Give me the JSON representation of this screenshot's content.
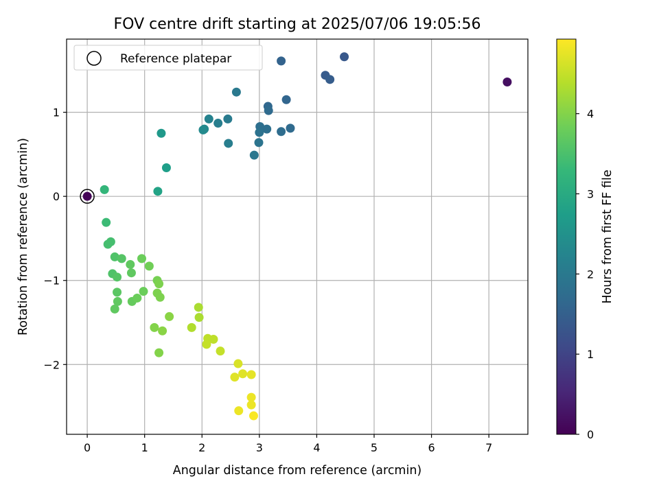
{
  "chart_data": {
    "type": "scatter",
    "title": "FOV centre drift starting at 2025/07/06 19:05:56",
    "xlabel": "Angular distance from reference (arcmin)",
    "ylabel": "Rotation from reference (arcmin)",
    "xlim": [
      -0.36,
      7.68
    ],
    "ylim": [
      -2.83,
      1.87
    ],
    "xticks": [
      0,
      1,
      2,
      3,
      4,
      5,
      6,
      7
    ],
    "xtick_labels": [
      "0",
      "1",
      "2",
      "3",
      "4",
      "5",
      "6",
      "7"
    ],
    "yticks": [
      -2,
      -1,
      0,
      1
    ],
    "ytick_labels": [
      "−2",
      "−1",
      "0",
      "1"
    ],
    "grid": true,
    "legend": {
      "placement": "top-left",
      "entries": [
        {
          "label": "Reference platepar",
          "marker": "open-circle"
        }
      ]
    },
    "reference_point": {
      "x": 0,
      "y": 0
    },
    "colorbar": {
      "label": "Hours from first FF file",
      "range": [
        0,
        4.93
      ],
      "ticks": [
        0,
        1,
        2,
        3,
        4
      ],
      "tick_labels": [
        "0",
        "1",
        "2",
        "3",
        "4"
      ],
      "colormap": "viridis",
      "stops": [
        "#440154",
        "#482878",
        "#3e4a89",
        "#31688e",
        "#26828e",
        "#1f9e89",
        "#35b779",
        "#6ece58",
        "#b5de2b",
        "#fde725"
      ]
    },
    "points": [
      {
        "x": 0.0,
        "y": 0.0,
        "c": 0.05
      },
      {
        "x": 7.32,
        "y": 1.36,
        "c": 0.2
      },
      {
        "x": 4.48,
        "y": 1.66,
        "c": 1.35
      },
      {
        "x": 4.15,
        "y": 1.44,
        "c": 1.4
      },
      {
        "x": 4.23,
        "y": 1.39,
        "c": 1.45
      },
      {
        "x": 3.38,
        "y": 1.61,
        "c": 1.55
      },
      {
        "x": 3.47,
        "y": 1.15,
        "c": 1.6
      },
      {
        "x": 3.15,
        "y": 1.07,
        "c": 1.65
      },
      {
        "x": 3.16,
        "y": 1.02,
        "c": 1.7
      },
      {
        "x": 3.54,
        "y": 0.81,
        "c": 1.7
      },
      {
        "x": 3.38,
        "y": 0.77,
        "c": 1.75
      },
      {
        "x": 3.13,
        "y": 0.8,
        "c": 1.8
      },
      {
        "x": 3.01,
        "y": 0.83,
        "c": 1.8
      },
      {
        "x": 3.0,
        "y": 0.76,
        "c": 1.85
      },
      {
        "x": 2.99,
        "y": 0.64,
        "c": 1.9
      },
      {
        "x": 2.91,
        "y": 0.49,
        "c": 1.95
      },
      {
        "x": 2.6,
        "y": 1.24,
        "c": 2.0
      },
      {
        "x": 2.45,
        "y": 0.92,
        "c": 2.05
      },
      {
        "x": 2.28,
        "y": 0.87,
        "c": 2.1
      },
      {
        "x": 2.46,
        "y": 0.63,
        "c": 2.1
      },
      {
        "x": 2.12,
        "y": 0.92,
        "c": 2.2
      },
      {
        "x": 2.04,
        "y": 0.8,
        "c": 2.3
      },
      {
        "x": 2.02,
        "y": 0.79,
        "c": 2.35
      },
      {
        "x": 1.29,
        "y": 0.75,
        "c": 2.65
      },
      {
        "x": 1.38,
        "y": 0.34,
        "c": 2.75
      },
      {
        "x": 1.23,
        "y": 0.06,
        "c": 2.85
      },
      {
        "x": 0.3,
        "y": 0.08,
        "c": 3.25
      },
      {
        "x": 0.33,
        "y": -0.31,
        "c": 3.35
      },
      {
        "x": 0.41,
        "y": -0.54,
        "c": 3.45
      },
      {
        "x": 0.36,
        "y": -0.57,
        "c": 3.45
      },
      {
        "x": 0.48,
        "y": -0.72,
        "c": 3.55
      },
      {
        "x": 0.6,
        "y": -0.74,
        "c": 3.6
      },
      {
        "x": 0.75,
        "y": -0.81,
        "c": 3.7
      },
      {
        "x": 0.95,
        "y": -0.74,
        "c": 3.8
      },
      {
        "x": 1.08,
        "y": -0.83,
        "c": 3.85
      },
      {
        "x": 0.44,
        "y": -0.92,
        "c": 3.55
      },
      {
        "x": 0.52,
        "y": -0.96,
        "c": 3.6
      },
      {
        "x": 0.77,
        "y": -0.91,
        "c": 3.7
      },
      {
        "x": 1.22,
        "y": -1.0,
        "c": 3.9
      },
      {
        "x": 1.25,
        "y": -1.04,
        "c": 3.95
      },
      {
        "x": 0.52,
        "y": -1.14,
        "c": 3.65
      },
      {
        "x": 0.98,
        "y": -1.13,
        "c": 3.8
      },
      {
        "x": 1.22,
        "y": -1.15,
        "c": 3.95
      },
      {
        "x": 1.27,
        "y": -1.2,
        "c": 3.95
      },
      {
        "x": 0.78,
        "y": -1.25,
        "c": 3.75
      },
      {
        "x": 0.87,
        "y": -1.21,
        "c": 3.8
      },
      {
        "x": 0.53,
        "y": -1.25,
        "c": 3.7
      },
      {
        "x": 0.48,
        "y": -1.34,
        "c": 3.7
      },
      {
        "x": 1.43,
        "y": -1.43,
        "c": 4.05
      },
      {
        "x": 1.17,
        "y": -1.56,
        "c": 4.0
      },
      {
        "x": 1.31,
        "y": -1.6,
        "c": 4.05
      },
      {
        "x": 1.25,
        "y": -1.86,
        "c": 4.0
      },
      {
        "x": 1.94,
        "y": -1.32,
        "c": 4.3
      },
      {
        "x": 1.95,
        "y": -1.44,
        "c": 4.3
      },
      {
        "x": 1.82,
        "y": -1.56,
        "c": 4.35
      },
      {
        "x": 2.1,
        "y": -1.69,
        "c": 4.45
      },
      {
        "x": 2.2,
        "y": -1.7,
        "c": 4.45
      },
      {
        "x": 2.08,
        "y": -1.76,
        "c": 4.5
      },
      {
        "x": 2.32,
        "y": -1.84,
        "c": 4.5
      },
      {
        "x": 2.63,
        "y": -1.99,
        "c": 4.65
      },
      {
        "x": 2.71,
        "y": -2.11,
        "c": 4.7
      },
      {
        "x": 2.86,
        "y": -2.12,
        "c": 4.75
      },
      {
        "x": 2.57,
        "y": -2.15,
        "c": 4.7
      },
      {
        "x": 2.86,
        "y": -2.39,
        "c": 4.8
      },
      {
        "x": 2.86,
        "y": -2.48,
        "c": 4.8
      },
      {
        "x": 2.64,
        "y": -2.55,
        "c": 4.8
      },
      {
        "x": 2.9,
        "y": -2.61,
        "c": 4.9
      }
    ]
  }
}
